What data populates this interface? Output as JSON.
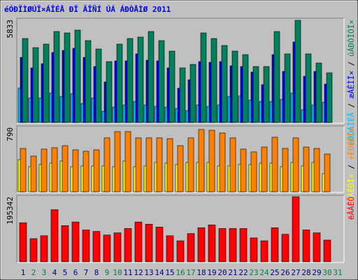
{
  "chart_data": [
    {
      "type": "bar",
      "title": "éÓÐÏÌØÚÏ×ÁÎÉÅ ÐÏ ÄÎÑÍ ÚÁ ÁÐÒÅÌØ 2011",
      "legend_separator": " / ",
      "ylim": [
        0,
        5833
      ],
      "yticks": [
        5833
      ],
      "series": [
        {
          "name": "óÔÒÁÎÉÃ",
          "color": "#00c0ff",
          "values": [
            1971,
            1419,
            1419,
            1695,
            1498,
            1655,
            1104,
            1419,
            670,
            907,
            1025,
            1222,
            1025,
            946,
            907,
            828,
            709,
            1025,
            946,
            1025,
            1498,
            1537,
            1301,
            1222,
            1222,
            1340,
            1695,
            749,
            1025,
            1182,
            0
          ]
        },
        {
          "name": "æÁÊÌÏ×",
          "color": "#0000ff",
          "values": [
            3705,
            3114,
            3350,
            3981,
            4099,
            4217,
            3705,
            3192,
            2325,
            3508,
            3508,
            3902,
            3547,
            3508,
            3114,
            1971,
            2443,
            3468,
            3429,
            3468,
            3232,
            3192,
            2877,
            2168,
            3862,
            2916,
            4572,
            2640,
            2916,
            2207,
            0
          ]
        },
        {
          "name": "úÁÐÒÏÓÏ×",
          "color": "#00805c",
          "values": [
            4769,
            4256,
            4454,
            5163,
            5084,
            5242,
            4651,
            4178,
            3468,
            4454,
            4769,
            4848,
            5163,
            4651,
            4059,
            3114,
            3311,
            5084,
            4769,
            4375,
            4059,
            3862,
            3192,
            3192,
            5163,
            3902,
            5793,
            3902,
            3389,
            2838,
            0
          ]
        }
      ]
    },
    {
      "type": "bar",
      "legend_separator": " / ",
      "ylim": [
        0,
        790
      ],
      "yticks": [
        790
      ],
      "series": [
        {
          "name": "óÁÊÔÏ×",
          "color": "#ffff00",
          "values": [
            399,
            314,
            340,
            357,
            382,
            314,
            323,
            323,
            323,
            314,
            382,
            314,
            323,
            365,
            357,
            340,
            365,
            365,
            365,
            323,
            323,
            340,
            340,
            357,
            357,
            314,
            365,
            323,
            365,
            229,
            0
          ]
        },
        {
          "name": "÷ÉÚÉÔÏ×",
          "color": "#ff8000",
          "values": [
            535,
            442,
            527,
            544,
            569,
            518,
            501,
            518,
            663,
            739,
            739,
            663,
            663,
            663,
            654,
            569,
            663,
            765,
            756,
            722,
            663,
            527,
            493,
            552,
            671,
            535,
            663,
            552,
            535,
            467,
            0
          ]
        }
      ]
    },
    {
      "type": "bar",
      "ylim": [
        0,
        195342
      ],
      "yticks": [
        195342
      ],
      "categories": [
        "1",
        "2",
        "3",
        "4",
        "5",
        "6",
        "7",
        "8",
        "9",
        "10",
        "11",
        "12",
        "13",
        "14",
        "15",
        "16",
        "17",
        "18",
        "19",
        "20",
        "21",
        "22",
        "23",
        "24",
        "25",
        "26",
        "27",
        "28",
        "29",
        "30",
        "31"
      ],
      "category_colors": [
        "#000080",
        "#008040",
        "#008040",
        "#000080",
        "#000080",
        "#000080",
        "#000080",
        "#000080",
        "#008040",
        "#008040",
        "#000080",
        "#000080",
        "#000080",
        "#000080",
        "#000080",
        "#008040",
        "#008040",
        "#000080",
        "#000080",
        "#000080",
        "#000080",
        "#000080",
        "#008040",
        "#008040",
        "#000080",
        "#000080",
        "#000080",
        "#000080",
        "#000080",
        "#008040",
        "#008040"
      ],
      "series": [
        {
          "name": "ëÂÁÊÔ",
          "color": "#ff0000",
          "values": [
            118085,
            70851,
            79439,
            156731,
            109497,
            120232,
            96615,
            92321,
            81586,
            88027,
            100909,
            120232,
            113791,
            105203,
            79439,
            64410,
            85880,
            103056,
            111644,
            100909,
            100909,
            100909,
            72998,
            64410,
            103056,
            83733,
            195342,
            96615,
            88027,
            66557,
            0
          ]
        }
      ]
    }
  ]
}
